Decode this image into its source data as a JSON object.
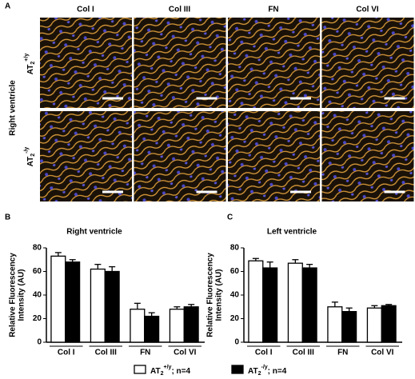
{
  "panel_labels": [
    "A",
    "B",
    "C"
  ],
  "image_columns": [
    "Col I",
    "Col III",
    "FN",
    "Col VI"
  ],
  "image_side_label": "Right ventricle",
  "image_rows": [
    {
      "base": "AT",
      "sub": "2",
      "sup": "+/y"
    },
    {
      "base": "AT",
      "sub": "2",
      "sup": "-/y"
    }
  ],
  "legend": [
    {
      "base": "AT",
      "sub": "2",
      "sup": "+/y",
      "rest": "; n=4",
      "color": "#ffffff"
    },
    {
      "base": "AT",
      "sub": "2",
      "sup": "-/y",
      "rest": "; n=4",
      "color": "#000000"
    }
  ],
  "chart_data": [
    {
      "type": "bar",
      "title": "Right ventricle",
      "y_label": [
        "Relative Fluorescency",
        "Intensity (AU)"
      ],
      "categories": [
        "Col I",
        "Col III",
        "FN",
        "Col VI"
      ],
      "ylim": [
        0,
        80
      ],
      "yticks": [
        0,
        20,
        40,
        60,
        80
      ],
      "series": [
        {
          "color": "#ffffff",
          "values": [
            73,
            62,
            28,
            28
          ],
          "errors": [
            3,
            4,
            5,
            2
          ]
        },
        {
          "color": "#000000",
          "values": [
            68,
            60,
            22,
            30
          ],
          "errors": [
            2,
            4,
            3,
            2
          ]
        }
      ]
    },
    {
      "type": "bar",
      "title": "Left ventricle",
      "y_label": [
        "Relative Fluorescency",
        "Intensity (AU)"
      ],
      "categories": [
        "Col I",
        "Col III",
        "FN",
        "Col VI"
      ],
      "ylim": [
        0,
        80
      ],
      "yticks": [
        0,
        20,
        40,
        60,
        80
      ],
      "series": [
        {
          "color": "#ffffff",
          "values": [
            69,
            67,
            30,
            29
          ],
          "errors": [
            2,
            3,
            4,
            2
          ]
        },
        {
          "color": "#000000",
          "values": [
            63,
            63,
            26,
            31
          ],
          "errors": [
            5,
            3,
            3,
            1
          ]
        }
      ]
    }
  ]
}
